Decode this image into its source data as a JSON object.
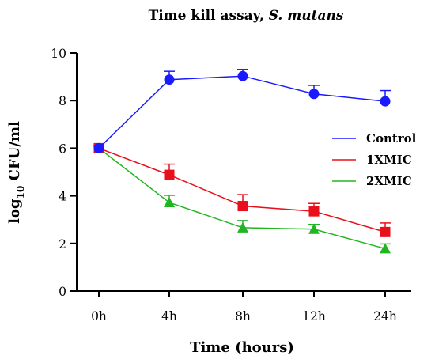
{
  "chart_data": {
    "type": "line",
    "title": "Time kill assay,",
    "title_italic": "S. mutans",
    "xlabel": "Time (hours)",
    "ylabel_prefix": "log",
    "ylabel_sub": "10",
    "ylabel_suffix": " CFU/ml",
    "categories": [
      "0h",
      "4h",
      "8h",
      "12h",
      "24h"
    ],
    "ylim": [
      0,
      10
    ],
    "yticks": [
      "0",
      "2",
      "4",
      "6",
      "8",
      "10"
    ],
    "legend_position": "right",
    "series": [
      {
        "name": "Control",
        "color": "#1a1aff",
        "marker": "circle",
        "values": [
          6.0,
          8.88,
          9.03,
          8.28,
          7.97
        ],
        "errors": [
          0.1,
          0.35,
          0.28,
          0.36,
          0.45
        ]
      },
      {
        "name": "1XMIC",
        "color": "#e8101b",
        "marker": "square",
        "values": [
          6.0,
          4.88,
          3.57,
          3.35,
          2.48
        ],
        "errors": [
          0.1,
          0.45,
          0.48,
          0.33,
          0.38
        ]
      },
      {
        "name": "2XMIC",
        "color": "#22b522",
        "marker": "triangle",
        "values": [
          6.0,
          3.72,
          2.66,
          2.6,
          1.78
        ],
        "errors": [
          0.1,
          0.3,
          0.3,
          0.2,
          0.2
        ]
      }
    ]
  }
}
